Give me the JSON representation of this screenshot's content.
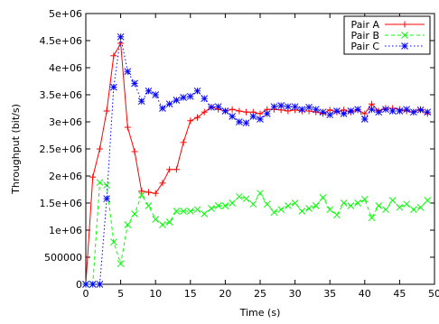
{
  "chart_data": {
    "type": "line",
    "title": "",
    "xlabel": "Time (s)",
    "ylabel": "Throughput (bit/s)",
    "xlim": [
      0,
      50
    ],
    "ylim": [
      0,
      5000000
    ],
    "x_ticks": [
      0,
      5,
      10,
      15,
      20,
      25,
      30,
      35,
      40,
      45,
      50
    ],
    "x_tick_labels": [
      "0",
      "5",
      "10",
      "15",
      "20",
      "25",
      "30",
      "35",
      "40",
      "45",
      "50"
    ],
    "y_ticks": [
      0,
      500000,
      1000000,
      1500000,
      2000000,
      2500000,
      3000000,
      3500000,
      4000000,
      4500000,
      5000000
    ],
    "y_tick_labels": [
      "0",
      "500000",
      "1e+06",
      "1.5e+06",
      "2e+06",
      "2.5e+06",
      "3e+06",
      "3.5e+06",
      "4e+06",
      "4.5e+06",
      "5e+06"
    ],
    "legend_position": "top-right",
    "grid": false,
    "series": [
      {
        "name": "Pair A",
        "color": "#ff0000",
        "marker": "plus",
        "line": "solid",
        "x": [
          0,
          1,
          2,
          3,
          4,
          5,
          6,
          7,
          8,
          9,
          10,
          11,
          12,
          13,
          14,
          15,
          16,
          17,
          18,
          19,
          20,
          21,
          22,
          23,
          24,
          25,
          26,
          27,
          28,
          29,
          30,
          31,
          32,
          33,
          34,
          35,
          36,
          37,
          38,
          39,
          40,
          41,
          42,
          43,
          44,
          45,
          46,
          47,
          48,
          49
        ],
        "y": [
          0,
          1980000,
          2500000,
          3200000,
          4220000,
          4450000,
          2900000,
          2450000,
          1720000,
          1700000,
          1680000,
          1870000,
          2120000,
          2120000,
          2620000,
          3020000,
          3080000,
          3180000,
          3270000,
          3230000,
          3200000,
          3230000,
          3200000,
          3180000,
          3180000,
          3150000,
          3230000,
          3230000,
          3220000,
          3200000,
          3220000,
          3200000,
          3200000,
          3180000,
          3150000,
          3220000,
          3180000,
          3220000,
          3180000,
          3220000,
          3150000,
          3330000,
          3200000,
          3250000,
          3250000,
          3230000,
          3200000,
          3180000,
          3230000,
          3150000
        ]
      },
      {
        "name": "Pair B",
        "color": "#00ff00",
        "marker": "cross",
        "line": "dashed",
        "x": [
          0,
          1,
          2,
          3,
          4,
          5,
          6,
          7,
          8,
          9,
          10,
          11,
          12,
          13,
          14,
          15,
          16,
          17,
          18,
          19,
          20,
          21,
          22,
          23,
          24,
          25,
          26,
          27,
          28,
          29,
          30,
          31,
          32,
          33,
          34,
          35,
          36,
          37,
          38,
          39,
          40,
          41,
          42,
          43,
          44,
          45,
          46,
          47,
          48,
          49
        ],
        "y": [
          0,
          0,
          1880000,
          1830000,
          780000,
          380000,
          1100000,
          1300000,
          1650000,
          1450000,
          1200000,
          1100000,
          1150000,
          1350000,
          1350000,
          1350000,
          1380000,
          1300000,
          1400000,
          1450000,
          1450000,
          1500000,
          1620000,
          1580000,
          1480000,
          1680000,
          1480000,
          1330000,
          1380000,
          1450000,
          1500000,
          1350000,
          1400000,
          1450000,
          1600000,
          1380000,
          1280000,
          1500000,
          1450000,
          1500000,
          1570000,
          1230000,
          1450000,
          1380000,
          1550000,
          1420000,
          1480000,
          1380000,
          1420000,
          1550000
        ]
      },
      {
        "name": "Pair C",
        "color": "#0000ff",
        "marker": "star",
        "line": "dotted",
        "x": [
          0,
          1,
          2,
          3,
          4,
          5,
          6,
          7,
          8,
          9,
          10,
          11,
          12,
          13,
          14,
          15,
          16,
          17,
          18,
          19,
          20,
          21,
          22,
          23,
          24,
          25,
          26,
          27,
          28,
          29,
          30,
          31,
          32,
          33,
          34,
          35,
          36,
          37,
          38,
          39,
          40,
          41,
          42,
          43,
          44,
          45,
          46,
          47,
          48,
          49
        ],
        "y": [
          0,
          0,
          0,
          1580000,
          3640000,
          4570000,
          3930000,
          3710000,
          3380000,
          3570000,
          3500000,
          3250000,
          3330000,
          3400000,
          3450000,
          3470000,
          3570000,
          3430000,
          3270000,
          3280000,
          3200000,
          3100000,
          3000000,
          2980000,
          3100000,
          3050000,
          3150000,
          3280000,
          3300000,
          3280000,
          3280000,
          3230000,
          3270000,
          3230000,
          3180000,
          3130000,
          3200000,
          3150000,
          3200000,
          3230000,
          3050000,
          3230000,
          3180000,
          3230000,
          3200000,
          3200000,
          3230000,
          3180000,
          3220000,
          3180000
        ]
      }
    ]
  }
}
